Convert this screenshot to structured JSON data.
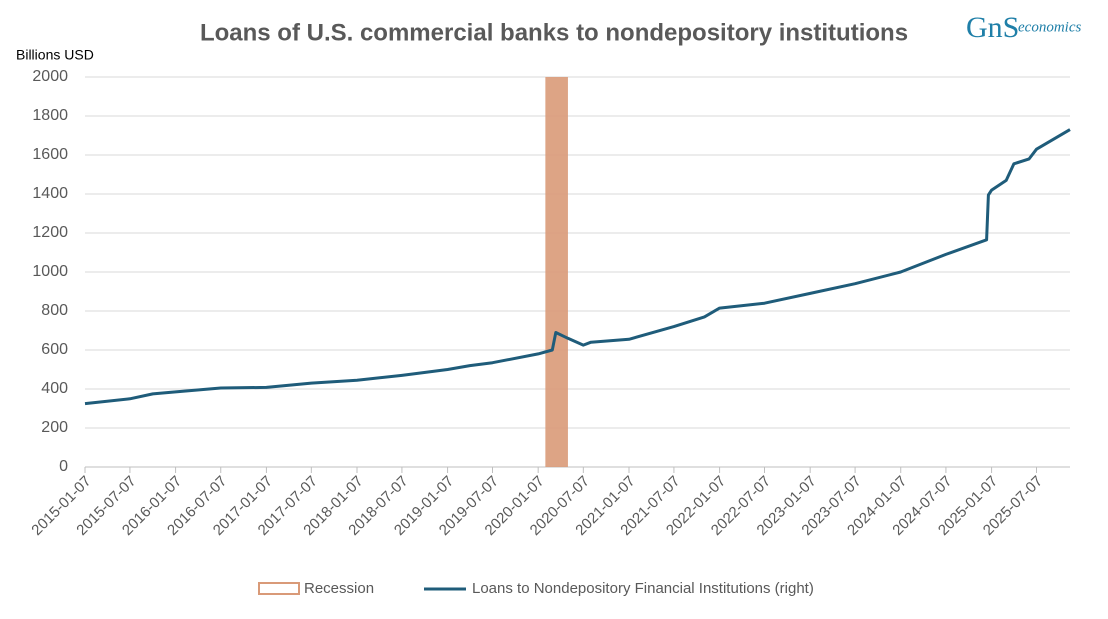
{
  "chart_data": {
    "type": "line",
    "title": "Loans of U.S. commercial banks to nondepository institutions",
    "logo": {
      "mark": "GnS",
      "text": "economics"
    },
    "ylabel": "Billions USD",
    "x": [
      "2015-01-07",
      "2015-07-07",
      "2015-10-07",
      "2016-01-07",
      "2016-07-07",
      "2017-01-07",
      "2017-07-07",
      "2018-01-07",
      "2018-07-07",
      "2019-01-07",
      "2019-04-07",
      "2019-07-07",
      "2020-01-07",
      "2020-03-04",
      "2020-03-18",
      "2020-05-06",
      "2020-07-07",
      "2020-08-07",
      "2021-01-07",
      "2021-07-07",
      "2021-11-07",
      "2022-01-07",
      "2022-07-07",
      "2023-01-07",
      "2023-07-07",
      "2024-01-07",
      "2024-07-07",
      "2024-12-18",
      "2024-12-25",
      "2025-01-07",
      "2025-03-07",
      "2025-04-07",
      "2025-06-07",
      "2025-07-07",
      "2025-11-19"
    ],
    "series": [
      {
        "name": "Loans to Nondepository Financial Institutions (right)",
        "color": "#1f5c7a",
        "values": [
          325,
          350,
          375,
          385,
          405,
          408,
          430,
          445,
          470,
          500,
          520,
          535,
          580,
          600,
          690,
          660,
          625,
          640,
          655,
          720,
          770,
          815,
          840,
          890,
          940,
          1000,
          1090,
          1165,
          1395,
          1420,
          1470,
          1555,
          1580,
          1630,
          1730
        ]
      }
    ],
    "recession": {
      "name": "Recession",
      "start": "2020-02-05",
      "end": "2020-05-06",
      "color": "#d99a78"
    },
    "xlim": [
      "2015-01-07",
      "2025-11-19"
    ],
    "xticks": [
      "2015-01-07",
      "2015-07-07",
      "2016-01-07",
      "2016-07-07",
      "2017-01-07",
      "2017-07-07",
      "2018-01-07",
      "2018-07-07",
      "2019-01-07",
      "2019-07-07",
      "2020-01-07",
      "2020-07-07",
      "2021-01-07",
      "2021-07-07",
      "2022-01-07",
      "2022-07-07",
      "2023-01-07",
      "2023-07-07",
      "2024-01-07",
      "2024-07-07",
      "2025-01-07",
      "2025-07-07"
    ],
    "ylim": [
      0,
      2000
    ],
    "yticks": [
      0,
      200,
      400,
      600,
      800,
      1000,
      1200,
      1400,
      1600,
      1800,
      2000
    ],
    "grid": true
  }
}
